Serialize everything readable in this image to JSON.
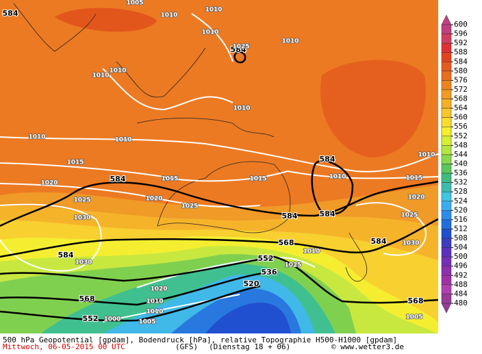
{
  "map": {
    "height_labels": [
      584,
      584,
      584,
      584,
      584,
      584,
      584,
      584,
      568,
      568,
      568,
      552,
      552,
      536,
      520
    ],
    "isobar_labels": [
      1005,
      1010,
      1010,
      1010,
      1010,
      1010,
      1010,
      1010,
      1010,
      1010,
      1010,
      1010,
      1010,
      1015,
      1015,
      1015,
      1015,
      1020,
      1020,
      1020,
      1025,
      1025,
      1025,
      1025,
      1030,
      1030,
      1030,
      1025,
      1020,
      1010,
      1010,
      1005,
      1005,
      1000
    ]
  },
  "colorbar": {
    "ticks": [
      600,
      596,
      592,
      588,
      584,
      580,
      576,
      572,
      568,
      564,
      560,
      556,
      552,
      548,
      544,
      540,
      536,
      532,
      528,
      524,
      520,
      516,
      512,
      508,
      504,
      500,
      496,
      492,
      488,
      484,
      480
    ],
    "colors": [
      "#c0407f",
      "#d23e62",
      "#e03232",
      "#e2441e",
      "#e65a1c",
      "#ea6e1e",
      "#ee8420",
      "#f29a24",
      "#f5b028",
      "#f8c62c",
      "#fadc2e",
      "#f6ee2e",
      "#d6ee34",
      "#b2e640",
      "#88d84c",
      "#5cc85a",
      "#40bc82",
      "#3ebcae",
      "#40c6e0",
      "#3cacf0",
      "#2e8cec",
      "#206ee0",
      "#2050d0",
      "#3c3cc4",
      "#5a30bc",
      "#7430b6",
      "#8c30ae",
      "#a030a8",
      "#b040b0",
      "#983c98"
    ]
  },
  "footer": {
    "line1": "500 hPa Geopotential [gpdam], Bodendruck [hPa], relative Topographie H500-H1000 [gpdam]",
    "date": "Mittwoch, 06-05-2015  00 UTC",
    "model": "(GFS)",
    "run": "(Dienstag 18 + 06)",
    "copyright": "© www.wetter3.de"
  }
}
